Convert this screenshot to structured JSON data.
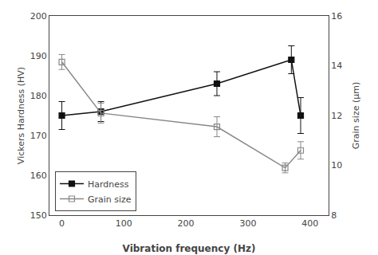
{
  "chart_data": {
    "type": "line",
    "xlabel": "Vibration frequency (Hz)",
    "ylabel": "Vickers Hardness (HV)",
    "y2label": "Grain size (μm)",
    "xlim": [
      -20,
      430
    ],
    "xticks": [
      0,
      100,
      200,
      300,
      400
    ],
    "ylim": [
      150,
      200
    ],
    "yticks": [
      150,
      160,
      170,
      180,
      190,
      200
    ],
    "y2lim": [
      8,
      16
    ],
    "y2ticks": [
      8,
      10,
      12,
      14,
      16
    ],
    "grid": false,
    "legend": "lower left",
    "series": [
      {
        "name": "Hardness",
        "color": "#111111",
        "marker": "square",
        "x": [
          0,
          63,
          250,
          370,
          385
        ],
        "values": [
          175,
          176,
          183,
          189,
          175
        ],
        "errors": [
          3.5,
          2.5,
          3.0,
          3.5,
          4.5
        ]
      },
      {
        "name": "Grain size",
        "color": "#888888",
        "marker": "square-open",
        "axis": "y2",
        "x": [
          0,
          63,
          250,
          360,
          385
        ],
        "values": [
          14.15,
          12.1,
          11.55,
          9.9,
          10.6
        ],
        "errors": [
          0.3,
          0.4,
          0.4,
          0.2,
          0.35
        ]
      }
    ]
  }
}
